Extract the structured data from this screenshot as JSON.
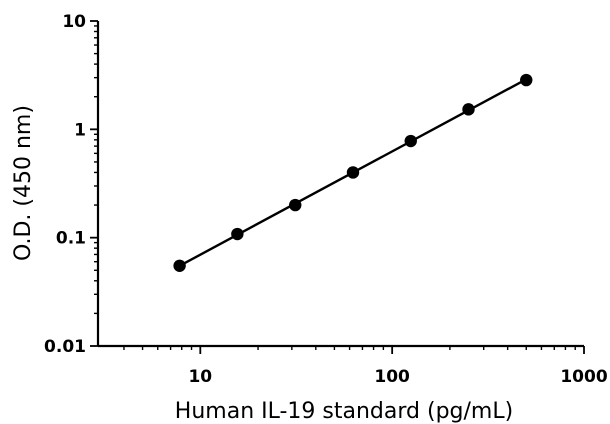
{
  "chart_data": {
    "type": "scatter",
    "title": "",
    "xlabel": "Human IL-19 standard (pg/mL)",
    "ylabel": "O.D. (450 nm)",
    "xscale": "log",
    "yscale": "log",
    "xlim": [
      3,
      1000
    ],
    "ylim": [
      0.01,
      10
    ],
    "x_ticks": [
      {
        "value": 10,
        "label": "10"
      },
      {
        "value": 100,
        "label": "100"
      },
      {
        "value": 1000,
        "label": "1000"
      }
    ],
    "y_ticks": [
      {
        "value": 0.01,
        "label": "0.01"
      },
      {
        "value": 0.1,
        "label": "0.1"
      },
      {
        "value": 1,
        "label": "1"
      },
      {
        "value": 10,
        "label": "10"
      }
    ],
    "grid": false,
    "legend": "none",
    "fit_line": true,
    "marker_color": "#000000",
    "series": [
      {
        "x": [
          7.8,
          15.6,
          31.25,
          62.5,
          125,
          250,
          500
        ],
        "y": [
          0.055,
          0.108,
          0.2,
          0.4,
          0.78,
          1.53,
          2.85
        ]
      }
    ]
  }
}
